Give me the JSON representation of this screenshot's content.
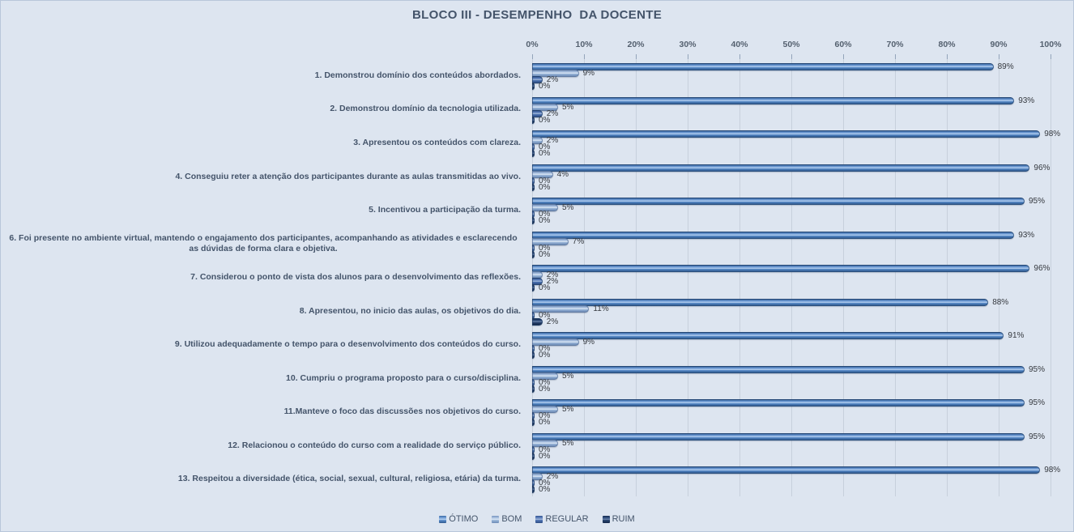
{
  "chart_data": {
    "type": "bar",
    "orientation": "horizontal",
    "title": "BLOCO III - DESEMPENHO  DA DOCENTE",
    "categories": [
      "1. Demonstrou domínio dos conteúdos abordados.",
      "2. Demonstrou domínio da tecnologia utilizada.",
      "3. Apresentou os conteúdos com clareza.",
      "4. Conseguiu reter a atenção dos participantes durante as aulas transmitidas ao vivo.",
      "5. Incentivou a participação da turma.",
      "6. Foi presente no ambiente virtual, mantendo o engajamento dos participantes, acompanhando as atividades e esclarecendo as dúvidas de forma clara e objetiva.",
      "7. Considerou o ponto de vista dos alunos para o desenvolvimento das reflexões.",
      "8. Apresentou, no inicio das aulas, os objetivos do dia.",
      "9. Utilizou adequadamente o tempo para o desenvolvimento dos conteúdos do curso.",
      "10. Cumpriu o programa proposto para o curso/disciplina.",
      "11.Manteve o foco das discussões nos objetivos do curso.",
      "12. Relacionou o conteúdo do curso com a realidade do serviço público.",
      "13. Respeitou a diversidade (ética, social, sexual, cultural, religiosa, etária) da turma."
    ],
    "series": [
      {
        "name": "ÓTIMO",
        "color": "#4f81bd",
        "values": [
          89,
          93,
          98,
          96,
          95,
          93,
          96,
          88,
          91,
          95,
          95,
          95,
          98
        ]
      },
      {
        "name": "BOM",
        "color": "#95b3d7",
        "values": [
          9,
          5,
          2,
          4,
          5,
          7,
          2,
          11,
          9,
          5,
          5,
          5,
          2
        ]
      },
      {
        "name": "REGULAR",
        "color": "#466aa8",
        "values": [
          2,
          2,
          0,
          0,
          0,
          0,
          2,
          0,
          0,
          0,
          0,
          0,
          0
        ]
      },
      {
        "name": "RUIM",
        "color": "#1f3864",
        "values": [
          0,
          0,
          0,
          0,
          0,
          0,
          0,
          2,
          0,
          0,
          0,
          0,
          0
        ]
      }
    ],
    "value_label_format": "{value}%",
    "x_axis": {
      "position": "top",
      "min": 0,
      "max": 100,
      "ticks": [
        "0%",
        "10%",
        "20%",
        "30%",
        "40%",
        "50%",
        "60%",
        "70%",
        "80%",
        "90%",
        "100%"
      ]
    },
    "gridlines": true,
    "legend_position": "bottom"
  }
}
